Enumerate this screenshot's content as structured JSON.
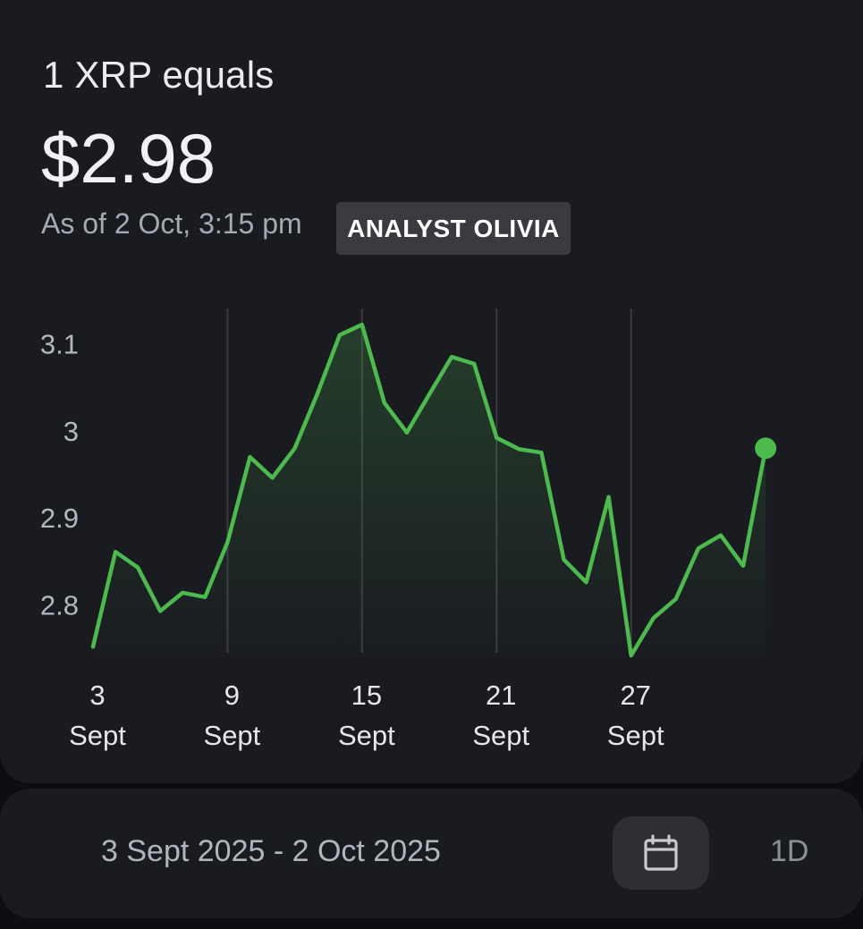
{
  "header": {
    "title": "1 XRP equals",
    "price": "$2.98",
    "as_of": "As of 2 Oct, 3:15 pm",
    "badge": "ANALYST OLIVIA"
  },
  "chart_data": {
    "type": "line",
    "x": [
      "3 Sept",
      "4 Sept",
      "5 Sept",
      "6 Sept",
      "7 Sept",
      "8 Sept",
      "9 Sept",
      "10 Sept",
      "11 Sept",
      "12 Sept",
      "13 Sept",
      "14 Sept",
      "15 Sept",
      "16 Sept",
      "17 Sept",
      "18 Sept",
      "19 Sept",
      "20 Sept",
      "21 Sept",
      "22 Sept",
      "23 Sept",
      "24 Sept",
      "25 Sept",
      "26 Sept",
      "27 Sept",
      "28 Sept",
      "29 Sept",
      "30 Sept",
      "1 Oct",
      "2 Oct",
      "2 Oct 3:15 pm"
    ],
    "values": [
      2.752,
      2.861,
      2.843,
      2.793,
      2.814,
      2.809,
      2.872,
      2.97,
      2.946,
      2.98,
      3.042,
      3.11,
      3.122,
      3.032,
      2.998,
      3.042,
      3.085,
      3.077,
      2.992,
      2.979,
      2.975,
      2.852,
      2.826,
      2.924,
      2.742,
      2.785,
      2.807,
      2.865,
      2.88,
      2.845,
      2.98
    ],
    "y_ticks": [
      "3.1",
      "3",
      "2.9",
      "2.8"
    ],
    "x_ticks": [
      {
        "day": "3",
        "month": "Sept"
      },
      {
        "day": "9",
        "month": "Sept"
      },
      {
        "day": "15",
        "month": "Sept"
      },
      {
        "day": "21",
        "month": "Sept"
      },
      {
        "day": "27",
        "month": "Sept"
      }
    ],
    "ylim": [
      2.74,
      3.12
    ],
    "grid": "vertical",
    "line_color": "#4cba4c"
  },
  "footer": {
    "date_range": "3 Sept 2025 - 2 Oct 2025",
    "calendar_icon": "calendar-icon",
    "interval_label": "1D"
  }
}
